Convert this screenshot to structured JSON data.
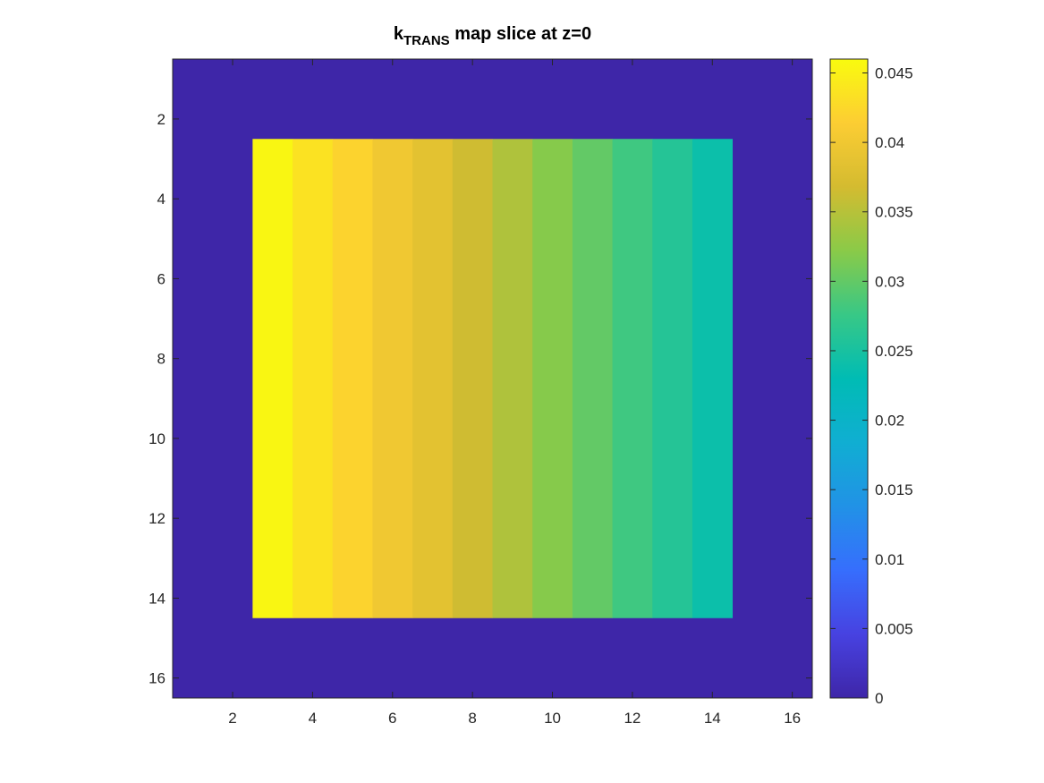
{
  "chart_data": {
    "type": "heatmap",
    "title": {
      "prefix": "k",
      "subscript": "TRANS",
      "suffix": " map slice at z=0"
    },
    "xlabel": "",
    "ylabel": "",
    "grid": false,
    "x_range": [
      0.5,
      16.5
    ],
    "y_range": [
      0.5,
      16.5
    ],
    "y_reversed": true,
    "x_ticks": [
      2,
      4,
      6,
      8,
      10,
      12,
      14,
      16
    ],
    "y_ticks": [
      2,
      4,
      6,
      8,
      10,
      12,
      14,
      16
    ],
    "background_value": 0,
    "region": {
      "cols": [
        3,
        14
      ],
      "rows": [
        3,
        14
      ]
    },
    "column_values": [
      {
        "col": 3,
        "value": 0.0455
      },
      {
        "col": 4,
        "value": 0.0435
      },
      {
        "col": 5,
        "value": 0.042
      },
      {
        "col": 6,
        "value": 0.04
      },
      {
        "col": 7,
        "value": 0.0385
      },
      {
        "col": 8,
        "value": 0.0365
      },
      {
        "col": 9,
        "value": 0.0345
      },
      {
        "col": 10,
        "value": 0.032
      },
      {
        "col": 11,
        "value": 0.03
      },
      {
        "col": 12,
        "value": 0.028
      },
      {
        "col": 13,
        "value": 0.026
      },
      {
        "col": 14,
        "value": 0.024
      }
    ],
    "colorbar": {
      "colormap": "parula",
      "limits": [
        0,
        0.046
      ],
      "ticks": [
        {
          "value": 0,
          "label": "0"
        },
        {
          "value": 0.005,
          "label": "0.005"
        },
        {
          "value": 0.01,
          "label": "0.01"
        },
        {
          "value": 0.015,
          "label": "0.015"
        },
        {
          "value": 0.02,
          "label": "0.02"
        },
        {
          "value": 0.025,
          "label": "0.025"
        },
        {
          "value": 0.03,
          "label": "0.03"
        },
        {
          "value": 0.035,
          "label": "0.035"
        },
        {
          "value": 0.04,
          "label": "0.04"
        },
        {
          "value": 0.045,
          "label": "0.045"
        }
      ]
    }
  }
}
